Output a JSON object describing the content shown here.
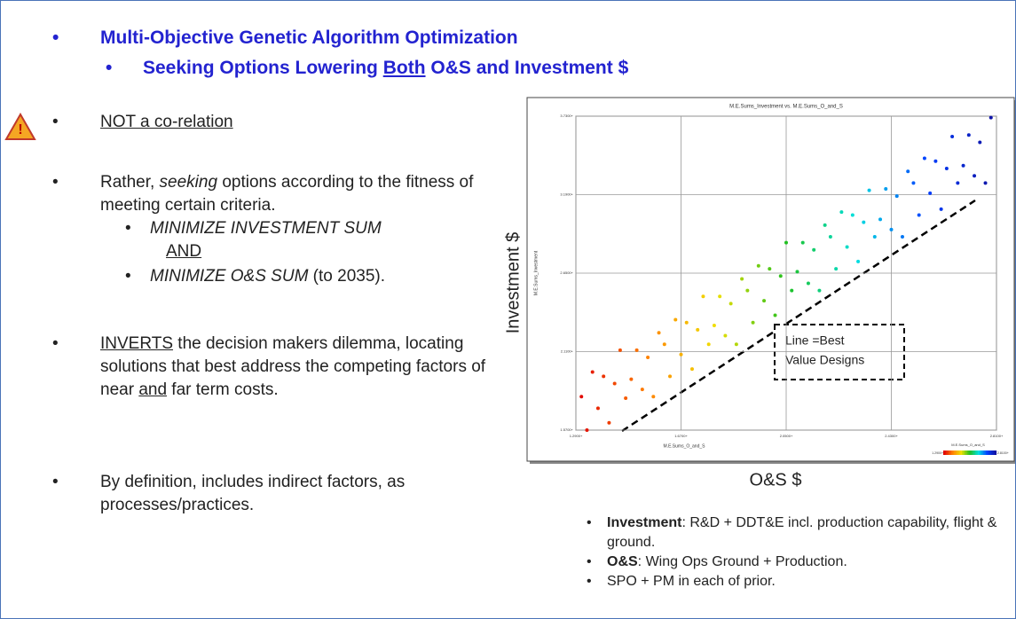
{
  "header": {
    "title": "Multi-Objective Genetic Algorithm Optimization",
    "subtitle": [
      "Seeking Options Lowering ",
      "Both",
      " O&S and Investment $"
    ]
  },
  "left_bullets": {
    "item1": "NOT a co-relation",
    "item2": [
      "Rather, ",
      "seeking",
      " options according to the fitness of meeting certain criteria."
    ],
    "sub1": "MINIMIZE INVESTMENT SUM",
    "sub_and": "AND",
    "sub2": [
      "MINIMIZE O&S SUM",
      " (to 2035)."
    ],
    "item3": [
      "INVERTS",
      " the decision makers dilemma, locating solutions that best address the competing factors of near ",
      "and",
      " far term costs."
    ],
    "item4": "By definition, includes indirect factors, as processes/practices."
  },
  "right_bullets": [
    [
      "Investment",
      ": R&D + DDT&E incl. production capability, flight & ground."
    ],
    [
      "O&S",
      ": Wing Ops Ground + Production."
    ],
    [
      "SPO + PM in each of prior."
    ]
  ],
  "chart_data": {
    "type": "scatter",
    "title": "M.E.Sums_Investment vs. M.E.Sums_O_and_S",
    "inner_x_label": "M.E.Sums_O_and_S",
    "inner_y_label": "M.E.Sums_Investment",
    "x_axis_label": "O&S $",
    "y_axis_label": "Investment $",
    "annotation": [
      "Line =Best",
      "Value Designs"
    ],
    "colorbar_title": "M.E.Sums_O_and_S",
    "colormap": [
      "#e00000",
      "#ff8000",
      "#f0e000",
      "#20c020",
      "#00e0e0",
      "#0040ff",
      "#1010a0"
    ],
    "grid": true,
    "xlim": [
      1.29,
      2.81
    ],
    "ylim": [
      1.57,
      3.73
    ],
    "xticks": [
      {
        "value": 1.29,
        "label": "1.2900+"
      },
      {
        "value": 1.67,
        "label": "1.6700+"
      },
      {
        "value": 2.05,
        "label": "2.0500+"
      },
      {
        "value": 2.43,
        "label": "2.4300+"
      },
      {
        "value": 2.81,
        "label": "2.8100+"
      }
    ],
    "yticks": [
      {
        "value": 1.57,
        "label": "1.5700+"
      },
      {
        "value": 2.11,
        "label": "2.1100+"
      },
      {
        "value": 2.65,
        "label": "2.6500+"
      },
      {
        "value": 3.19,
        "label": "3.1900+"
      },
      {
        "value": 3.73,
        "label": "3.7300+"
      }
    ],
    "x": [
      1.31,
      1.33,
      1.35,
      1.37,
      1.39,
      1.41,
      1.43,
      1.45,
      1.47,
      1.49,
      1.51,
      1.53,
      1.55,
      1.57,
      1.59,
      1.61,
      1.63,
      1.65,
      1.67,
      1.69,
      1.71,
      1.73,
      1.75,
      1.77,
      1.79,
      1.81,
      1.83,
      1.85,
      1.87,
      1.89,
      1.91,
      1.93,
      1.95,
      1.97,
      1.99,
      2.01,
      2.03,
      2.05,
      2.07,
      2.09,
      2.11,
      2.13,
      2.15,
      2.17,
      2.19,
      2.21,
      2.23,
      2.25,
      2.27,
      2.29,
      2.31,
      2.33,
      2.35,
      2.37,
      2.39,
      2.41,
      2.43,
      2.45,
      2.47,
      2.49,
      2.51,
      2.53,
      2.55,
      2.57,
      2.59,
      2.61,
      2.63,
      2.65,
      2.67,
      2.69,
      2.71,
      2.73,
      2.75,
      2.77,
      2.79
    ],
    "y": [
      1.8,
      1.57,
      1.97,
      1.72,
      1.94,
      1.62,
      1.89,
      2.12,
      1.79,
      1.92,
      2.12,
      1.85,
      2.07,
      1.8,
      2.24,
      2.16,
      1.94,
      2.33,
      2.09,
      2.31,
      1.99,
      2.26,
      2.49,
      2.16,
      2.29,
      2.49,
      2.22,
      2.44,
      2.16,
      2.61,
      2.53,
      2.31,
      2.7,
      2.46,
      2.68,
      2.36,
      2.63,
      2.86,
      2.53,
      2.66,
      2.86,
      2.58,
      2.81,
      2.53,
      2.98,
      2.9,
      2.68,
      3.07,
      2.83,
      3.05,
      2.73,
      3.0,
      3.22,
      2.9,
      3.02,
      3.23,
      2.95,
      3.18,
      2.9,
      3.35,
      3.27,
      3.05,
      3.44,
      3.2,
      3.42,
      3.09,
      3.37,
      3.59,
      3.27,
      3.39,
      3.6,
      3.32,
      3.55,
      3.27,
      3.72
    ]
  }
}
